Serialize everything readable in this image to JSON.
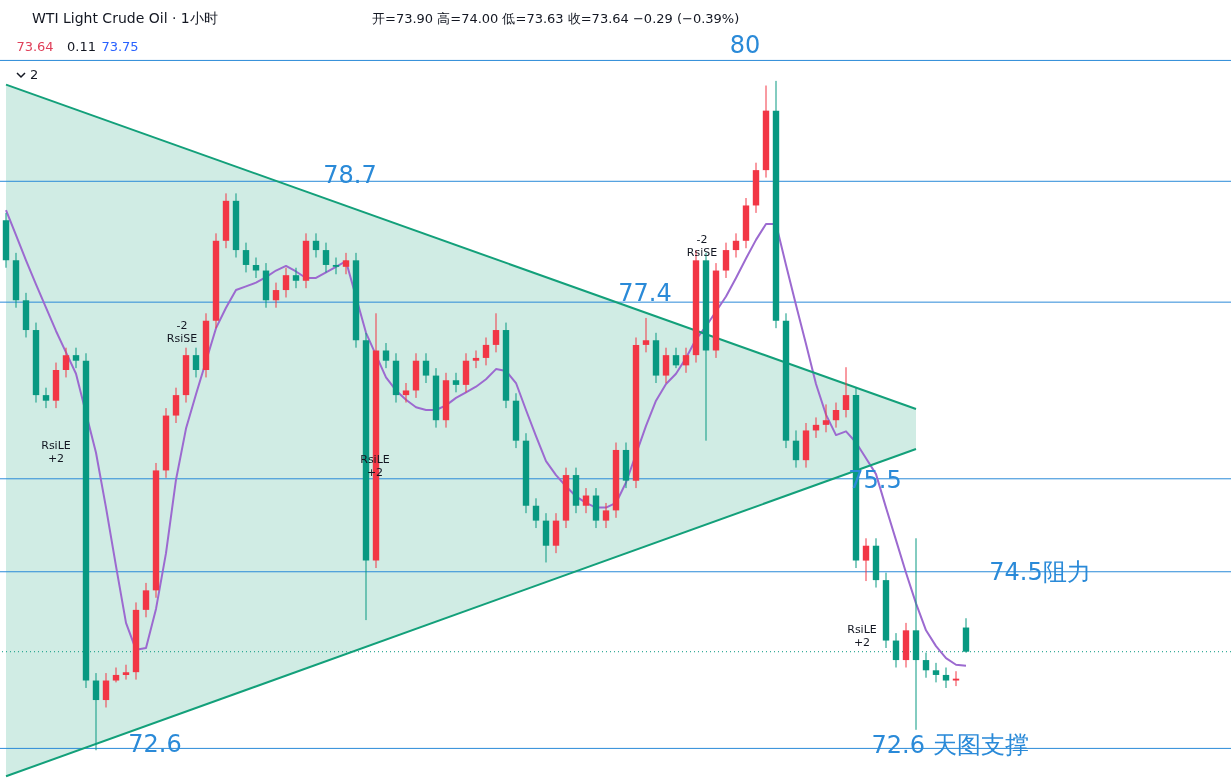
{
  "chart_data": {
    "type": "candlestick",
    "title": "WTI Light Crude Oil · 1小时",
    "subtitle": "开=73.90 高=74.00 低=73.63 收=73.64 −0.29 (−0.39%)",
    "categories": [
      null,
      null,
      null,
      null,
      null,
      null,
      null,
      null,
      null,
      null,
      null,
      null,
      null,
      null,
      null,
      null,
      null,
      null,
      null,
      null,
      null,
      null,
      null,
      null,
      null,
      null,
      null,
      null,
      null,
      null,
      null,
      null,
      null,
      null,
      null,
      null,
      null,
      null,
      null,
      null,
      null,
      null,
      null,
      null,
      null,
      null,
      null,
      null,
      null,
      null,
      null,
      null,
      null,
      null,
      null,
      null,
      null,
      null,
      null,
      null,
      null,
      null,
      null,
      null,
      null,
      null,
      null,
      null,
      null,
      null,
      null,
      null,
      null,
      null,
      null,
      null,
      null,
      null,
      null,
      null,
      null,
      null,
      null,
      null,
      null,
      null,
      null,
      null,
      null,
      null,
      null,
      null,
      null,
      null,
      null,
      null,
      null
    ],
    "colors": [
      "#089981",
      "#089981",
      "#089981",
      "#089981",
      "#089981",
      "#f23645",
      "#f23645",
      "#089981",
      "#089981",
      "#089981",
      "#f23645",
      "#f23645",
      "#f23645",
      "#f23645",
      "#f23645",
      "#f23645",
      "#f23645",
      "#f23645",
      "#f23645",
      "#089981",
      "#f23645",
      "#f23645",
      "#f23645",
      "#089981",
      "#089981",
      "#089981",
      "#089981",
      "#f23645",
      "#f23645",
      "#089981",
      "#f23645",
      "#089981",
      "#089981",
      "#089981",
      "#f23645",
      "#089981",
      "#089981",
      "#f23645",
      "#089981",
      "#089981",
      "#f23645",
      "#f23645",
      "#089981",
      "#089981",
      "#f23645",
      "#089981",
      "#f23645",
      "#f23645",
      "#f23645",
      "#f23645",
      "#089981",
      "#089981",
      "#089981",
      "#089981",
      "#089981",
      "#f23645",
      "#f23645",
      "#089981",
      "#f23645",
      "#089981",
      "#f23645",
      "#f23645",
      "#089981",
      "#f23645",
      "#f23645",
      "#089981",
      "#f23645",
      "#089981",
      "#f23645",
      "#f23645",
      "#089981",
      "#f23645",
      "#f23645",
      "#f23645",
      "#f23645",
      "#f23645",
      "#f23645",
      "#089981",
      "#089981",
      "#089981",
      "#f23645",
      "#f23645",
      "#f23645",
      "#f23645",
      "#f23645",
      "#089981",
      "#f23645",
      "#089981",
      "#089981",
      "#089981",
      "#f23645",
      "#089981",
      "#089981",
      "#089981",
      "#089981",
      "#f23645",
      "#089981"
    ],
    "ohlc": [
      [
        78.28,
        78.36,
        77.77,
        77.85
      ],
      [
        77.85,
        77.93,
        77.34,
        77.42
      ],
      [
        77.42,
        77.5,
        77.02,
        77.1
      ],
      [
        77.1,
        77.18,
        76.32,
        76.4
      ],
      [
        76.4,
        76.48,
        76.26,
        76.34
      ],
      [
        76.34,
        76.75,
        76.26,
        76.67
      ],
      [
        76.67,
        76.91,
        76.59,
        76.83
      ],
      [
        76.83,
        76.91,
        76.69,
        76.77
      ],
      [
        76.77,
        76.85,
        73.25,
        73.33
      ],
      [
        73.33,
        73.41,
        72.58,
        73.12
      ],
      [
        73.12,
        73.41,
        73.04,
        73.33
      ],
      [
        73.33,
        73.47,
        73.31,
        73.39
      ],
      [
        73.39,
        73.5,
        73.34,
        73.42
      ],
      [
        73.42,
        74.17,
        73.34,
        74.09
      ],
      [
        74.09,
        74.38,
        74.01,
        74.3
      ],
      [
        74.3,
        75.67,
        74.22,
        75.59
      ],
      [
        75.59,
        76.26,
        75.51,
        76.18
      ],
      [
        76.18,
        76.48,
        76.1,
        76.4
      ],
      [
        76.4,
        76.91,
        76.32,
        76.83
      ],
      [
        76.83,
        76.91,
        76.59,
        76.67
      ],
      [
        76.67,
        77.28,
        76.59,
        77.2
      ],
      [
        77.2,
        78.14,
        77.12,
        78.06
      ],
      [
        78.06,
        78.57,
        77.98,
        78.49
      ],
      [
        78.49,
        78.57,
        77.88,
        77.96
      ],
      [
        77.96,
        78.04,
        77.72,
        77.8
      ],
      [
        77.8,
        77.88,
        77.66,
        77.74
      ],
      [
        77.74,
        77.82,
        77.34,
        77.42
      ],
      [
        77.42,
        77.61,
        77.34,
        77.53
      ],
      [
        77.53,
        77.77,
        77.45,
        77.69
      ],
      [
        77.69,
        77.77,
        77.55,
        77.63
      ],
      [
        77.63,
        78.14,
        77.55,
        78.06
      ],
      [
        78.06,
        78.14,
        77.88,
        77.96
      ],
      [
        77.96,
        78.04,
        77.72,
        77.8
      ],
      [
        77.8,
        77.88,
        77.7,
        77.78
      ],
      [
        77.78,
        77.93,
        77.7,
        77.85
      ],
      [
        77.85,
        77.93,
        76.91,
        76.99
      ],
      [
        76.99,
        77.07,
        73.98,
        74.62
      ],
      [
        74.62,
        77.28,
        74.54,
        76.88
      ],
      [
        76.88,
        76.96,
        76.69,
        76.77
      ],
      [
        76.77,
        76.85,
        76.32,
        76.4
      ],
      [
        76.4,
        76.53,
        76.32,
        76.45
      ],
      [
        76.45,
        76.85,
        76.37,
        76.77
      ],
      [
        76.77,
        76.85,
        76.53,
        76.61
      ],
      [
        76.61,
        76.69,
        76.05,
        76.13
      ],
      [
        76.13,
        76.64,
        76.05,
        76.56
      ],
      [
        76.56,
        76.64,
        76.43,
        76.51
      ],
      [
        76.51,
        76.85,
        76.43,
        76.77
      ],
      [
        76.77,
        76.88,
        76.69,
        76.8
      ],
      [
        76.8,
        77.02,
        76.72,
        76.94
      ],
      [
        76.94,
        77.28,
        76.86,
        77.1
      ],
      [
        77.1,
        77.18,
        76.26,
        76.34
      ],
      [
        76.34,
        76.42,
        75.83,
        75.91
      ],
      [
        75.91,
        75.99,
        75.13,
        75.21
      ],
      [
        75.21,
        75.29,
        74.97,
        75.05
      ],
      [
        75.05,
        75.13,
        74.6,
        74.78
      ],
      [
        74.78,
        75.13,
        74.7,
        75.05
      ],
      [
        75.05,
        75.62,
        74.97,
        75.54
      ],
      [
        75.54,
        75.62,
        75.13,
        75.21
      ],
      [
        75.21,
        75.4,
        75.13,
        75.32
      ],
      [
        75.32,
        75.4,
        74.97,
        75.05
      ],
      [
        75.05,
        75.24,
        74.97,
        75.16
      ],
      [
        75.16,
        75.89,
        75.08,
        75.81
      ],
      [
        75.81,
        75.89,
        75.4,
        75.48
      ],
      [
        75.48,
        77.02,
        75.4,
        76.94
      ],
      [
        76.94,
        77.23,
        76.86,
        76.99
      ],
      [
        76.99,
        77.07,
        76.53,
        76.61
      ],
      [
        76.61,
        76.91,
        76.53,
        76.83
      ],
      [
        76.83,
        76.91,
        76.69,
        76.72
      ],
      [
        76.72,
        76.91,
        76.64,
        76.83
      ],
      [
        76.83,
        77.96,
        76.75,
        77.85
      ],
      [
        77.85,
        77.93,
        75.91,
        76.88
      ],
      [
        76.88,
        77.82,
        76.8,
        77.74
      ],
      [
        77.74,
        78.04,
        77.66,
        77.96
      ],
      [
        77.96,
        78.14,
        77.88,
        78.06
      ],
      [
        78.06,
        78.52,
        77.98,
        78.44
      ],
      [
        78.44,
        78.9,
        78.36,
        78.82
      ],
      [
        78.82,
        79.73,
        78.74,
        79.46
      ],
      [
        79.46,
        79.78,
        77.12,
        77.2
      ],
      [
        77.2,
        77.28,
        75.83,
        75.91
      ],
      [
        75.91,
        76.02,
        75.62,
        75.7
      ],
      [
        75.7,
        76.1,
        75.62,
        76.02
      ],
      [
        76.02,
        76.16,
        75.94,
        76.08
      ],
      [
        76.08,
        76.3,
        76.0,
        76.13
      ],
      [
        76.13,
        76.32,
        76.05,
        76.24
      ],
      [
        76.24,
        76.7,
        76.16,
        76.4
      ],
      [
        76.4,
        76.48,
        74.54,
        74.62
      ],
      [
        74.62,
        74.86,
        74.4,
        74.78
      ],
      [
        74.78,
        74.86,
        74.33,
        74.41
      ],
      [
        74.41,
        74.49,
        73.68,
        73.76
      ],
      [
        73.76,
        73.84,
        73.47,
        73.55
      ],
      [
        73.55,
        73.95,
        73.47,
        73.87
      ],
      [
        73.87,
        74.86,
        72.8,
        73.55
      ],
      [
        73.55,
        73.63,
        73.36,
        73.44
      ],
      [
        73.44,
        73.52,
        73.31,
        73.39
      ],
      [
        73.39,
        73.47,
        73.25,
        73.33
      ],
      [
        73.33,
        73.43,
        73.27,
        73.35
      ],
      [
        73.9,
        74.0,
        73.63,
        73.64
      ]
    ],
    "series": [
      {
        "type": "line",
        "color": "#9c6ad0",
        "values": [
          78.39,
          78.12,
          77.85,
          77.59,
          77.34,
          77.09,
          76.86,
          76.63,
          null,
          75.78,
          75.19,
          74.56,
          73.95,
          73.66,
          73.68,
          74.1,
          74.7,
          75.49,
          76.04,
          76.41,
          null,
          77.12,
          77.34,
          77.53,
          77.57,
          77.61,
          77.67,
          77.74,
          77.79,
          77.73,
          77.66,
          77.66,
          77.72,
          77.78,
          77.84,
          null,
          77.07,
          null,
          76.59,
          76.45,
          76.35,
          76.27,
          76.24,
          76.24,
          76.29,
          76.37,
          76.43,
          76.49,
          76.57,
          76.68,
          76.66,
          76.53,
          76.24,
          75.96,
          75.69,
          75.54,
          75.42,
          75.31,
          75.24,
          75.19,
          75.19,
          75.24,
          75.46,
          null,
          76.07,
          76.34,
          76.52,
          76.63,
          76.8,
          77.0,
          77.14,
          77.3,
          77.46,
          77.66,
          77.87,
          78.07,
          78.24,
          78.24,
          77.8,
          77.37,
          76.95,
          76.52,
          76.19,
          75.97,
          76.01,
          75.89,
          75.72,
          75.55,
          75.19,
          74.84,
          74.49,
          74.16,
          73.87,
          73.7,
          73.57,
          73.5,
          73.49
        ]
      },
      {
        "type": "line",
        "color": "#13a07a",
        "values": [
          79.74,
          null,
          null,
          null,
          null,
          null,
          null,
          null,
          null,
          null,
          null,
          null,
          null,
          null,
          null,
          null,
          null,
          null,
          null,
          null,
          null,
          null,
          null,
          null,
          null,
          null,
          null,
          null,
          null,
          null,
          null,
          null,
          null,
          null,
          null,
          null,
          null,
          null,
          null,
          null,
          null,
          null,
          null,
          null,
          null,
          null,
          null,
          null,
          null,
          null,
          null,
          null,
          null,
          null,
          null,
          null,
          null,
          null,
          null,
          null,
          null,
          null,
          null,
          null,
          null,
          null,
          null,
          null,
          null,
          null,
          null,
          null,
          null,
          null,
          null,
          null,
          null,
          null,
          null,
          null,
          null,
          null,
          null,
          null,
          null,
          null,
          null,
          null,
          null,
          null,
          null,
          76.25,
          null,
          null,
          null,
          null,
          null
        ],
        "lower": [
          72.3,
          null,
          null,
          null,
          null,
          null,
          null,
          null,
          null,
          null,
          null,
          null,
          null,
          null,
          null,
          null,
          null,
          null,
          null,
          null,
          null,
          null,
          null,
          null,
          null,
          null,
          null,
          null,
          null,
          null,
          null,
          null,
          null,
          null,
          null,
          null,
          null,
          null,
          null,
          null,
          null,
          null,
          null,
          null,
          null,
          null,
          null,
          null,
          null,
          null,
          null,
          null,
          null,
          null,
          null,
          null,
          null,
          null,
          null,
          null,
          null,
          null,
          null,
          null,
          null,
          null,
          null,
          null,
          null,
          null,
          null,
          null,
          null,
          null,
          null,
          null,
          null,
          null,
          null,
          null,
          null,
          null,
          null,
          null,
          null,
          null,
          null,
          null,
          null,
          null,
          null,
          75.82,
          null,
          null,
          null,
          null,
          null
        ],
        "upper": [
          79.74,
          null,
          null,
          null,
          null,
          null,
          null,
          null,
          null,
          null,
          null,
          null,
          null,
          null,
          null,
          null,
          null,
          null,
          null,
          null,
          null,
          null,
          null,
          null,
          null,
          null,
          null,
          null,
          null,
          null,
          null,
          null,
          null,
          null,
          null,
          null,
          null,
          null,
          null,
          null,
          null,
          null,
          null,
          null,
          null,
          null,
          null,
          null,
          null,
          null,
          null,
          null,
          null,
          null,
          null,
          null,
          null,
          null,
          null,
          null,
          null,
          null,
          null,
          null,
          null,
          null,
          null,
          null,
          null,
          null,
          null,
          null,
          null,
          null,
          null,
          null,
          null,
          null,
          null,
          null,
          null,
          null,
          null,
          null,
          null,
          null,
          null,
          null,
          null,
          null,
          null,
          76.25,
          null,
          null,
          null,
          null,
          null
        ]
      },
      {
        "type": "line",
        "color": "#13a07a",
        "values": [
          72.3,
          null,
          null,
          null,
          null,
          null,
          null,
          null,
          null,
          null,
          null,
          null,
          null,
          null,
          null,
          null,
          null,
          null,
          null,
          null,
          null,
          null,
          null,
          null,
          null,
          null,
          null,
          null,
          null,
          null,
          null,
          null,
          null,
          null,
          null,
          null,
          null,
          null,
          null,
          null,
          null,
          null,
          null,
          null,
          null,
          null,
          null,
          null,
          null,
          null,
          null,
          null,
          null,
          null,
          null,
          null,
          null,
          null,
          null,
          null,
          null,
          null,
          null,
          null,
          null,
          null,
          null,
          null,
          null,
          null,
          null,
          null,
          null,
          null,
          null,
          null,
          null,
          null,
          null,
          null,
          null,
          null,
          null,
          null,
          null,
          null,
          null,
          null,
          null,
          null,
          null,
          75.82,
          null,
          null,
          null,
          null,
          null
        ]
      }
    ],
    "ylim": [
      72.26,
      80.65
    ],
    "tick_labels": false,
    "ref_lines": [
      {
        "axis": "y",
        "value": 80,
        "label": "80",
        "color": "#2a8ad8"
      },
      {
        "axis": "y",
        "value": 78.7,
        "label": "78.7",
        "color": "#2a8ad8"
      },
      {
        "axis": "y",
        "value": 77.4,
        "label": "77.4",
        "color": "#2a8ad8"
      },
      {
        "axis": "y",
        "value": 75.5,
        "label": "75.5",
        "color": "#2a8ad8"
      },
      {
        "axis": "y",
        "value": 74.5,
        "label": "74.5阻力",
        "color": "#2a8ad8"
      },
      {
        "axis": "y",
        "value": 72.6,
        "label": "72.6 天图支撑",
        "color": "#2a8ad8"
      },
      {
        "axis": "y",
        "value": 73.64,
        "color": "#089981",
        "line_style": "dotted"
      }
    ],
    "annotations": [
      "73.64",
      "0.11",
      "73.75",
      "2",
      "72.6",
      "RsiLE\n+2",
      "-2\nRsiSE",
      "RsiLE\n+2",
      "-2\nRsiSE",
      "RsiLE\n+2"
    ]
  }
}
